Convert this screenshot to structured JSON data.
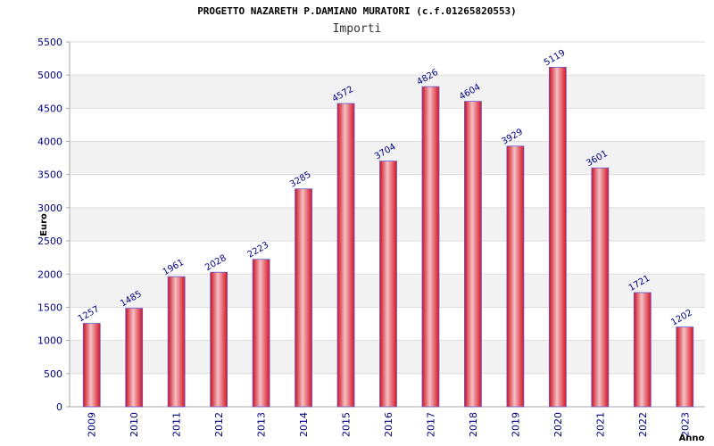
{
  "chart_data": {
    "type": "bar",
    "title": "PROGETTO NAZARETH P.DAMIANO MURATORI (c.f.01265820553)",
    "subtitle": "Importi",
    "xlabel": "Anno",
    "ylabel": "Euro",
    "categories": [
      "2009",
      "2010",
      "2011",
      "2012",
      "2013",
      "2014",
      "2015",
      "2016",
      "2017",
      "2018",
      "2019",
      "2020",
      "2021",
      "2022",
      "2023"
    ],
    "values": [
      1257,
      1485,
      1961,
      2028,
      2223,
      3285,
      4572,
      3704,
      4826,
      4604,
      3929,
      5119,
      3601,
      1721,
      1202
    ],
    "value_labels": [
      "1257",
      "1485",
      "1961",
      "2028",
      "2223",
      "3285",
      "4572",
      "3704",
      "4826",
      "4604",
      "3929",
      "5119",
      "3601",
      "1721",
      "1202"
    ],
    "ylim": [
      0,
      5500
    ],
    "yticks": [
      0,
      500,
      1000,
      1500,
      2000,
      2500,
      3000,
      3500,
      4000,
      4500,
      5000,
      5500
    ],
    "ytick_labels": [
      "0",
      "500",
      "1000",
      "1500",
      "2000",
      "2500",
      "3000",
      "3500",
      "4000",
      "4500",
      "5000",
      "5500"
    ],
    "grid": true,
    "colors": {
      "bar_edge": "#d01020",
      "bar_mid": "#f4b8bc",
      "bar_outline": "#6a5acd",
      "band_alt": "#f2f2f2",
      "axis_text": "#000080",
      "value_text": "#000080",
      "grid_line": "#dddddd"
    }
  }
}
